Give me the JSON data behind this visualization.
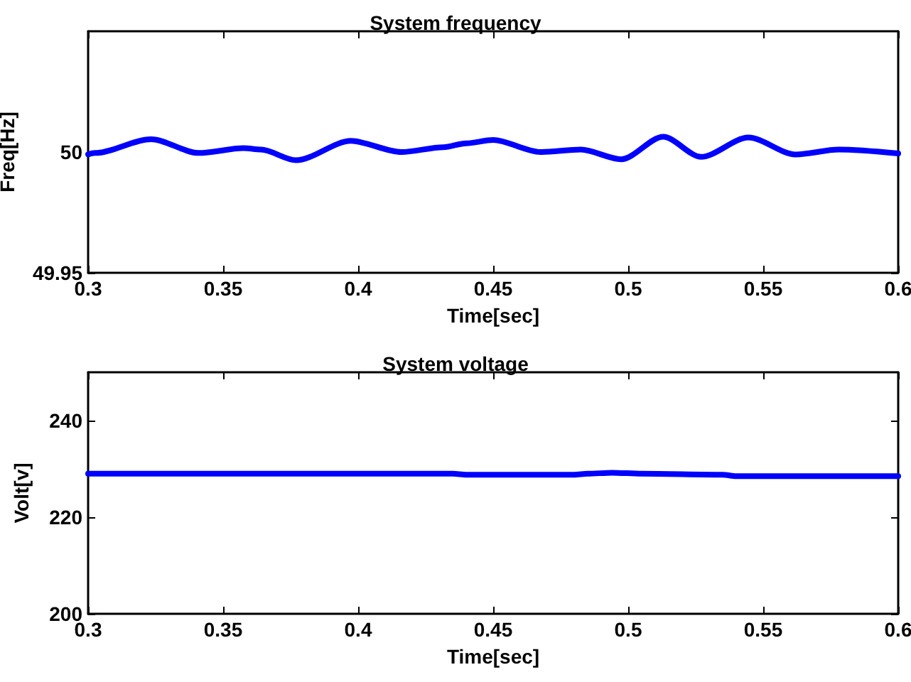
{
  "chart_data": [
    {
      "type": "line",
      "title": "System frequency",
      "xlabel": "Time[sec]",
      "ylabel": "Freq[Hz]",
      "xlim": [
        0.3,
        0.6
      ],
      "xticks": [
        0.3,
        0.35,
        0.4,
        0.45,
        0.5,
        0.55,
        0.6
      ],
      "ylim": [
        49.95,
        50.05
      ],
      "yticks": [
        49.95,
        50
      ],
      "grid": false,
      "marker": "none",
      "line_style": "solid",
      "series": [
        {
          "color": "#0000ff",
          "x": [
            0.3,
            0.3025,
            0.3233,
            0.341,
            0.3576,
            0.364,
            0.377,
            0.3973,
            0.416,
            0.4316,
            0.44,
            0.45,
            0.4675,
            0.4825,
            0.4974,
            0.513,
            0.527,
            0.5445,
            0.562,
            0.578,
            0.6
          ],
          "values": [
            49.999,
            49.9996,
            50.0053,
            49.9996,
            50.0016,
            50.001,
            49.9966,
            50.0046,
            50.0,
            50.002,
            50.0036,
            50.005,
            50.0,
            50.001,
            49.997,
            50.0063,
            49.998,
            50.006,
            49.999,
            50.001,
            49.9994
          ]
        }
      ]
    },
    {
      "type": "line",
      "title": "System voltage",
      "xlabel": "Time[sec]",
      "ylabel": "Volt[v]",
      "xlim": [
        0.3,
        0.6
      ],
      "xticks": [
        0.3,
        0.35,
        0.4,
        0.45,
        0.5,
        0.55,
        0.6
      ],
      "ylim": [
        200,
        250
      ],
      "yticks": [
        200,
        220,
        240
      ],
      "grid": false,
      "marker": "none",
      "line_style": "solid",
      "series": [
        {
          "color": "#0000ff",
          "x": [
            0.3,
            0.435,
            0.44,
            0.48,
            0.485,
            0.494,
            0.505,
            0.535,
            0.54,
            0.6
          ],
          "values": [
            229,
            229,
            228.8,
            228.8,
            229,
            229.2,
            229,
            228.8,
            228.5,
            228.5
          ]
        }
      ]
    }
  ]
}
